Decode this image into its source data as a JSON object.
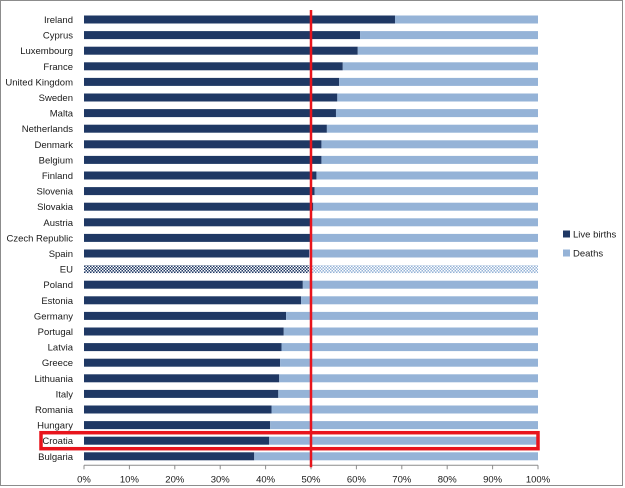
{
  "chart_data": {
    "type": "bar",
    "orientation": "horizontal",
    "stacked": "percent",
    "categories": [
      "Ireland",
      "Cyprus",
      "Luxembourg",
      "France",
      "United Kingdom",
      "Sweden",
      "Malta",
      "Netherlands",
      "Denmark",
      "Belgium",
      "Finland",
      "Slovenia",
      "Slovakia",
      "Austria",
      "Czech Republic",
      "Spain",
      "EU",
      "Poland",
      "Estonia",
      "Germany",
      "Portugal",
      "Latvia",
      "Greece",
      "Lithuania",
      "Italy",
      "Romania",
      "Hungary",
      "Croatia",
      "Bulgaria"
    ],
    "series": [
      {
        "name": "Live births",
        "color": "#1f3864",
        "values": [
          68.5,
          60.8,
          60.3,
          57.0,
          56.2,
          55.8,
          55.5,
          53.5,
          52.3,
          52.3,
          51.2,
          50.8,
          50.5,
          49.8,
          49.8,
          49.6,
          49.6,
          48.2,
          47.8,
          44.5,
          44.0,
          43.5,
          43.2,
          43.0,
          42.8,
          41.3,
          41.0,
          40.8,
          37.5
        ]
      },
      {
        "name": "Deaths",
        "color": "#95b3d7",
        "values": [
          31.5,
          39.2,
          39.7,
          43.0,
          43.8,
          44.2,
          44.5,
          46.5,
          47.7,
          47.7,
          48.8,
          49.2,
          49.5,
          50.2,
          50.2,
          50.4,
          50.4,
          51.8,
          52.2,
          55.5,
          56.0,
          56.5,
          56.8,
          57.0,
          57.2,
          58.7,
          59.0,
          59.2,
          62.5
        ]
      }
    ],
    "patterned_category": "EU",
    "xlim": [
      0,
      100
    ],
    "x_ticks": [
      "0%",
      "10%",
      "20%",
      "30%",
      "40%",
      "50%",
      "60%",
      "70%",
      "80%",
      "90%",
      "100%"
    ],
    "reference_line": {
      "value": 50,
      "color": "#e8141c"
    },
    "highlight": {
      "category": "Croatia",
      "color": "#e8141c"
    },
    "grid": false,
    "legend_position": "right"
  }
}
